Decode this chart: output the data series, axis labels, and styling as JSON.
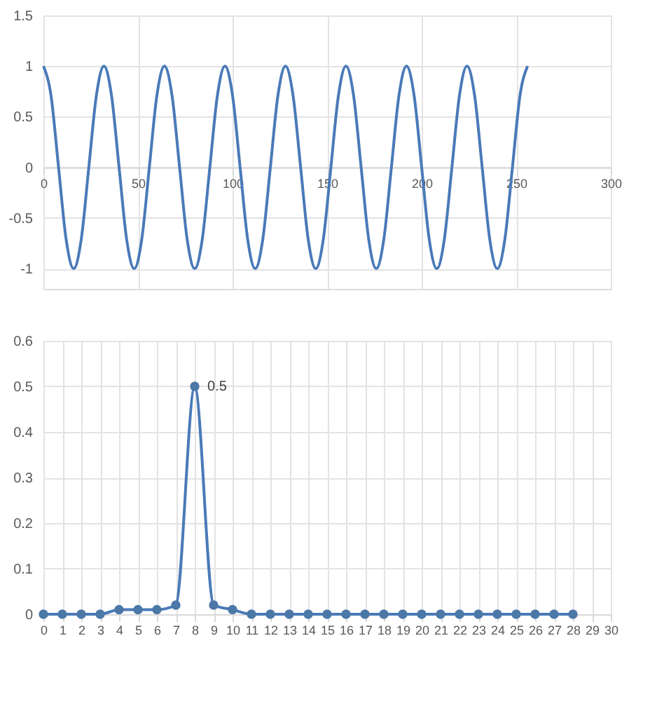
{
  "chart_data": [
    {
      "type": "line",
      "x": [
        0,
        4,
        8,
        12,
        16,
        20,
        24,
        28,
        32,
        36,
        40,
        44,
        48,
        52,
        56,
        60,
        64,
        68,
        72,
        76,
        80,
        84,
        88,
        92,
        96,
        100,
        104,
        108,
        112,
        116,
        120,
        124,
        128,
        132,
        136,
        140,
        144,
        148,
        152,
        156,
        160,
        164,
        168,
        172,
        176,
        180,
        184,
        188,
        192,
        196,
        200,
        204,
        208,
        212,
        216,
        220,
        224,
        228,
        232,
        236,
        240,
        244,
        248,
        252,
        256
      ],
      "series": [
        {
          "color": "#4a7ab8",
          "values": [
            1,
            0.71,
            0,
            -0.71,
            -1,
            -0.71,
            0,
            0.71,
            1,
            0.71,
            0,
            -0.71,
            -1,
            -0.71,
            0,
            0.71,
            1,
            0.71,
            0,
            -0.71,
            -1,
            -0.71,
            0,
            0.71,
            1,
            0.71,
            0,
            -0.71,
            -1,
            -0.71,
            0,
            0.71,
            1,
            0.71,
            0,
            -0.71,
            -1,
            -0.71,
            0,
            0.71,
            1,
            0.71,
            0,
            -0.71,
            -1,
            -0.71,
            0,
            0.71,
            1,
            0.71,
            0,
            -0.71,
            -1,
            -0.71,
            0,
            0.71,
            1,
            0.71,
            0,
            -0.71,
            -1,
            -0.71,
            0,
            0.71,
            1
          ]
        }
      ],
      "xlim": [
        0,
        300
      ],
      "xticks": [
        0,
        50,
        100,
        150,
        200,
        250,
        300
      ],
      "ylim": [
        -1.2,
        1.5
      ],
      "yticks": [
        -1,
        -0.5,
        0,
        0.5,
        1,
        1.5
      ],
      "grid": true,
      "marker": "none"
    },
    {
      "type": "line",
      "x": [
        0,
        1,
        2,
        3,
        4,
        5,
        6,
        7,
        8,
        9,
        10,
        11,
        12,
        13,
        14,
        15,
        16,
        17,
        18,
        19,
        20,
        21,
        22,
        23,
        24,
        25,
        26,
        27,
        28
      ],
      "series": [
        {
          "color": "#4a7ab8",
          "values": [
            0,
            0,
            0,
            0,
            0.01,
            0.01,
            0.01,
            0.02,
            0.5,
            0.02,
            0.01,
            0,
            0,
            0,
            0,
            0,
            0,
            0,
            0,
            0,
            0,
            0,
            0,
            0,
            0,
            0,
            0,
            0,
            0
          ],
          "value_labels": [
            null,
            null,
            null,
            null,
            null,
            null,
            null,
            null,
            "0.5",
            null,
            null,
            null,
            null,
            null,
            null,
            null,
            null,
            null,
            null,
            null,
            null,
            null,
            null,
            null,
            null,
            null,
            null,
            null,
            null
          ]
        }
      ],
      "xlim": [
        0,
        30
      ],
      "xticks": [
        0,
        1,
        2,
        3,
        4,
        5,
        6,
        7,
        8,
        9,
        10,
        11,
        12,
        13,
        14,
        15,
        16,
        17,
        18,
        19,
        20,
        21,
        22,
        23,
        24,
        25,
        26,
        27,
        28,
        29,
        30
      ],
      "ylim": [
        0,
        0.6
      ],
      "yticks": [
        0,
        0.1,
        0.2,
        0.3,
        0.4,
        0.5,
        0.6
      ],
      "grid": true,
      "marker": "circle"
    }
  ]
}
